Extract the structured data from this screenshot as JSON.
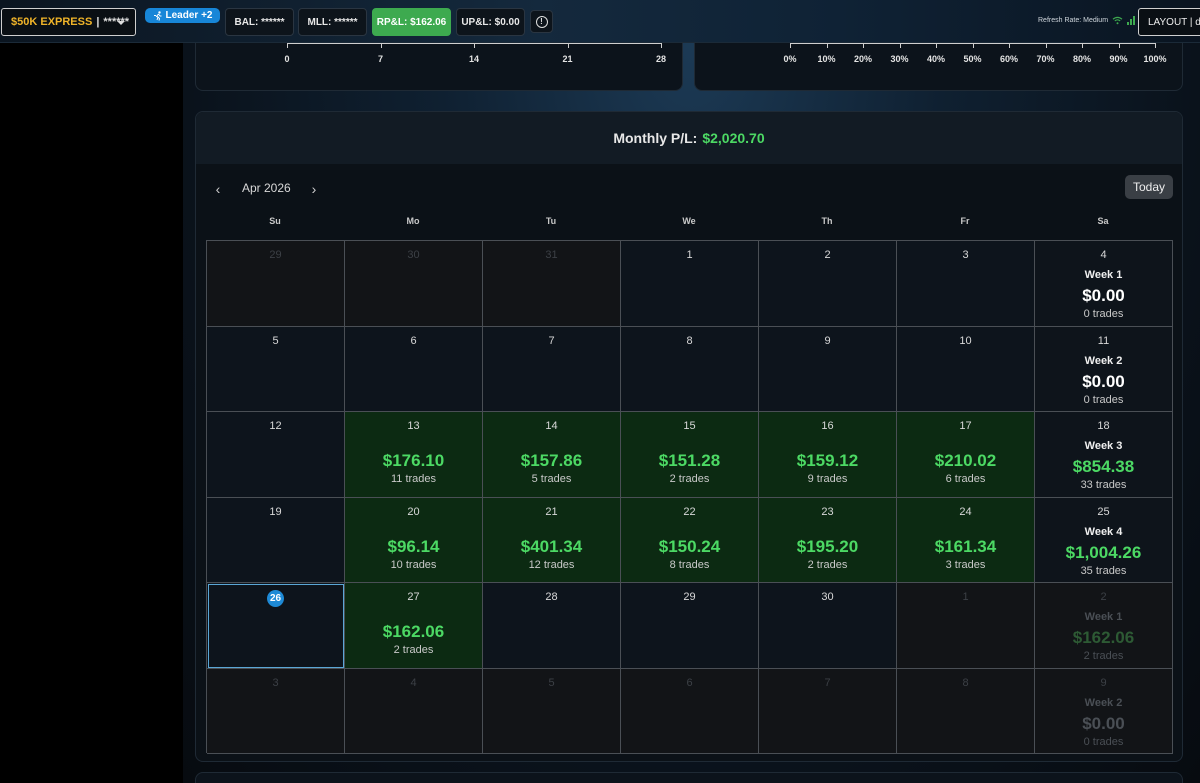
{
  "topbar": {
    "account": {
      "name": "$50K EXPRESS",
      "separator": "|",
      "mask": "******"
    },
    "leader": "Leader +2",
    "bal": "BAL: ******",
    "mll": "MLL: ******",
    "rpl": "RP&L: $162.06",
    "upl": "UP&L: $0.00",
    "info": "!",
    "refresh_rate": "Refresh Rate: Medium",
    "layout": "LAYOUT | default",
    "colors": {
      "account_name": "#f0b429",
      "leader_badge": "#1786d8",
      "rpl_bg": "#3daa4f"
    }
  },
  "top_panels": {
    "left_axis_ticks": [
      "0",
      "7",
      "14",
      "21",
      "28"
    ],
    "right_axis_ticks": [
      "0%",
      "10%",
      "20%",
      "30%",
      "40%",
      "50%",
      "60%",
      "70%",
      "80%",
      "90%",
      "100%"
    ]
  },
  "calendar": {
    "monthly_label": "Monthly P/L:",
    "monthly_value": "$2,020.70",
    "month": "Apr 2026",
    "prev_icon": "‹",
    "next_icon": "›",
    "today_button": "Today",
    "days_of_week": [
      "Su",
      "Mo",
      "Tu",
      "We",
      "Th",
      "Fr",
      "Sa"
    ],
    "weeks": [
      {
        "days": [
          {
            "n": "29",
            "dim": true
          },
          {
            "n": "30",
            "dim": true
          },
          {
            "n": "31",
            "dim": true
          },
          {
            "n": "1"
          },
          {
            "n": "2"
          },
          {
            "n": "3"
          }
        ],
        "sat": {
          "n": "4",
          "label": "Week 1",
          "amount": "$0.00",
          "trades": "0 trades",
          "positive": false
        }
      },
      {
        "days": [
          {
            "n": "5"
          },
          {
            "n": "6"
          },
          {
            "n": "7"
          },
          {
            "n": "8"
          },
          {
            "n": "9"
          },
          {
            "n": "10"
          }
        ],
        "sat": {
          "n": "11",
          "label": "Week 2",
          "amount": "$0.00",
          "trades": "0 trades",
          "positive": false
        }
      },
      {
        "days": [
          {
            "n": "12"
          },
          {
            "n": "13",
            "amount": "$176.10",
            "trades": "11 trades"
          },
          {
            "n": "14",
            "amount": "$157.86",
            "trades": "5 trades"
          },
          {
            "n": "15",
            "amount": "$151.28",
            "trades": "2 trades"
          },
          {
            "n": "16",
            "amount": "$159.12",
            "trades": "9 trades"
          },
          {
            "n": "17",
            "amount": "$210.02",
            "trades": "6 trades"
          }
        ],
        "sat": {
          "n": "18",
          "label": "Week 3",
          "amount": "$854.38",
          "trades": "33 trades",
          "positive": true
        }
      },
      {
        "days": [
          {
            "n": "19"
          },
          {
            "n": "20",
            "amount": "$96.14",
            "trades": "10 trades"
          },
          {
            "n": "21",
            "amount": "$401.34",
            "trades": "12 trades"
          },
          {
            "n": "22",
            "amount": "$150.24",
            "trades": "8 trades"
          },
          {
            "n": "23",
            "amount": "$195.20",
            "trades": "2 trades"
          },
          {
            "n": "24",
            "amount": "$161.34",
            "trades": "3 trades"
          }
        ],
        "sat": {
          "n": "25",
          "label": "Week 4",
          "amount": "$1,004.26",
          "trades": "35 trades",
          "positive": true
        }
      },
      {
        "days": [
          {
            "n": "26",
            "today": true
          },
          {
            "n": "27",
            "amount": "$162.06",
            "trades": "2 trades"
          },
          {
            "n": "28"
          },
          {
            "n": "29"
          },
          {
            "n": "30"
          },
          {
            "n": "1",
            "dim": true
          }
        ],
        "sat": {
          "n": "2",
          "label": "Week 1",
          "amount": "$162.06",
          "trades": "2 trades",
          "positive": true,
          "dim": true
        }
      },
      {
        "days": [
          {
            "n": "3",
            "dim": true
          },
          {
            "n": "4",
            "dim": true
          },
          {
            "n": "5",
            "dim": true
          },
          {
            "n": "6",
            "dim": true
          },
          {
            "n": "7",
            "dim": true
          },
          {
            "n": "8",
            "dim": true
          }
        ],
        "sat": {
          "n": "9",
          "label": "Week 2",
          "amount": "$0.00",
          "trades": "0 trades",
          "positive": false,
          "dim": true
        }
      }
    ]
  }
}
